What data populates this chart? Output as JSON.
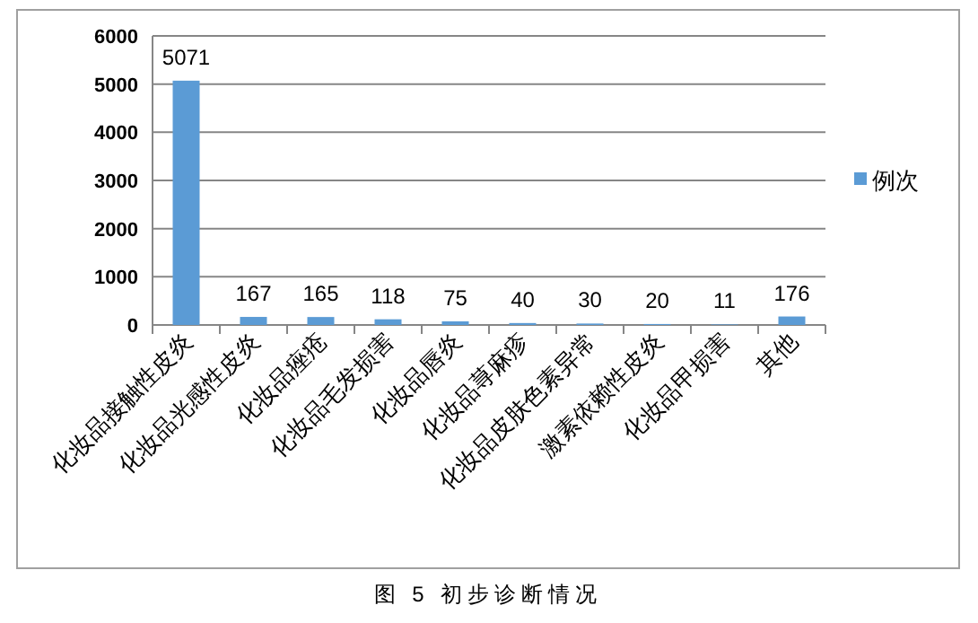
{
  "chart_data": {
    "type": "bar",
    "title": "图 5 初步诊断情况",
    "categories": [
      "化妆品接触性皮炎",
      "化妆品光感性皮炎",
      "化妆品痤疮",
      "化妆品毛发损害",
      "化妆品唇炎",
      "化妆品荨麻疹",
      "化妆品皮肤色素异常",
      "激素依赖性皮炎",
      "化妆品甲损害",
      "其他"
    ],
    "series": [
      {
        "name": "例次",
        "color": "#5b9bd5",
        "values": [
          5071,
          167,
          165,
          118,
          75,
          40,
          30,
          20,
          11,
          176
        ]
      }
    ],
    "ylim": [
      0,
      6000
    ],
    "yticks": [
      0,
      1000,
      2000,
      3000,
      4000,
      5000,
      6000
    ],
    "grid": "y",
    "legend": "right",
    "data_labels": true
  }
}
